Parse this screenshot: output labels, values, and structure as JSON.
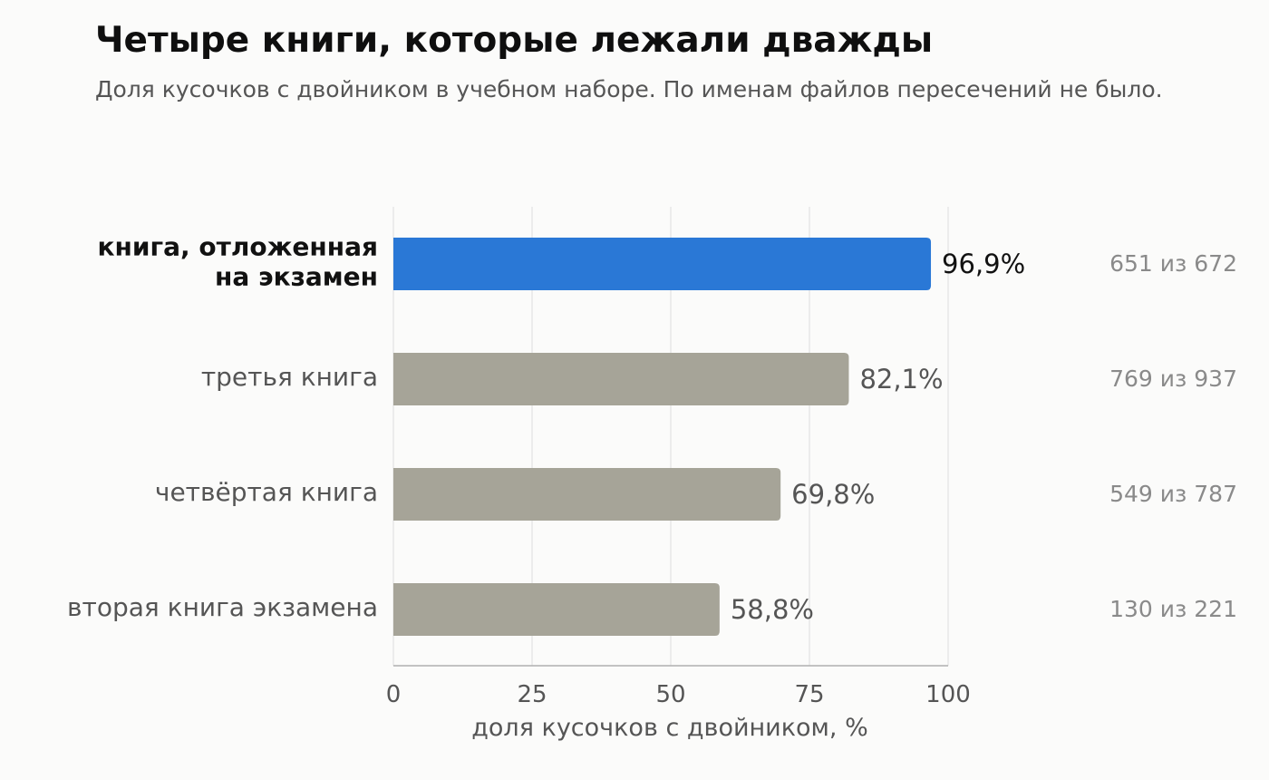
{
  "header": {
    "title": "Четыре книги, которые лежали дважды",
    "subtitle": "Доля кусочков с двойником в учебном наборе. По именам файлов пересечений не было."
  },
  "colors": {
    "background": "#fbfbfa",
    "highlight_bar": "#2a78d6",
    "normal_bar": "#a6a498",
    "grid": "#dddddd",
    "axis": "#b0b0b0",
    "highlight_label": "#111111",
    "normal_label": "#555555",
    "count_label": "#8a8a8a"
  },
  "chart_data": {
    "type": "bar",
    "orientation": "horizontal",
    "title": "Четыре книги, которые лежали дважды",
    "subtitle": "Доля кусочков с двойником в учебном наборе. По именам файлов пересечений не было.",
    "xlabel": "доля кусочков с двойником, %",
    "ylabel": "",
    "xlim": [
      0,
      100
    ],
    "xticks": [
      0,
      25,
      50,
      75,
      100
    ],
    "grid": "vertical",
    "legend": "none",
    "categories": [
      [
        "книга, отложенная",
        "на экзамен"
      ],
      [
        "третья книга"
      ],
      [
        "четвёртая книга"
      ],
      [
        "вторая книга экзамена"
      ]
    ],
    "values": [
      96.9,
      82.1,
      69.8,
      58.8
    ],
    "value_labels": [
      "96,9%",
      "82,1%",
      "69,8%",
      "58,8%"
    ],
    "counts": [
      "651 из 672",
      "769 из 937",
      "549 из 787",
      "130 из 221"
    ],
    "highlighted": [
      true,
      false,
      false,
      false
    ]
  }
}
